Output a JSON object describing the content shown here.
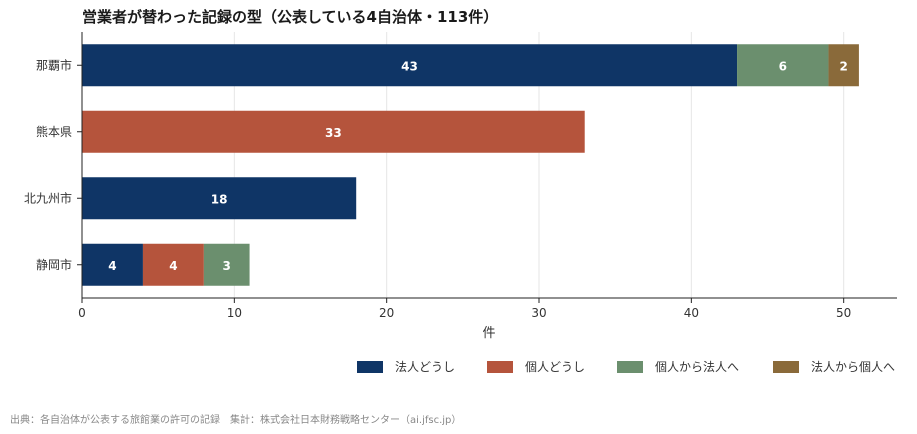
{
  "chart_data": {
    "type": "bar",
    "orientation": "horizontal",
    "stacked": true,
    "title": "営業者が替わった記録の型（公表している4自治体・113件）",
    "categories": [
      "那覇市",
      "熊本県",
      "北九州市",
      "静岡市"
    ],
    "series": [
      {
        "name": "法人どうし",
        "color": "#0f3566",
        "values": [
          43,
          0,
          18,
          4
        ]
      },
      {
        "name": "個人どうし",
        "color": "#b5543c",
        "values": [
          0,
          33,
          0,
          4
        ]
      },
      {
        "name": "個人から法人へ",
        "color": "#6b8f6e",
        "values": [
          6,
          0,
          0,
          3
        ]
      },
      {
        "name": "法人から個人へ",
        "color": "#8a6a3a",
        "values": [
          2,
          0,
          0,
          0
        ]
      }
    ],
    "xlabel": "件",
    "ylabel": "",
    "xlim": [
      0,
      53.5
    ],
    "xticks": [
      0,
      10,
      20,
      30,
      40,
      50
    ],
    "grid": "vertical",
    "legend_position": "bottom-right",
    "source": "出典：各自治体が公表する旅館業の許可の記録　集計：株式会社日本財務戦略センター（ai.jfsc.jp）"
  }
}
